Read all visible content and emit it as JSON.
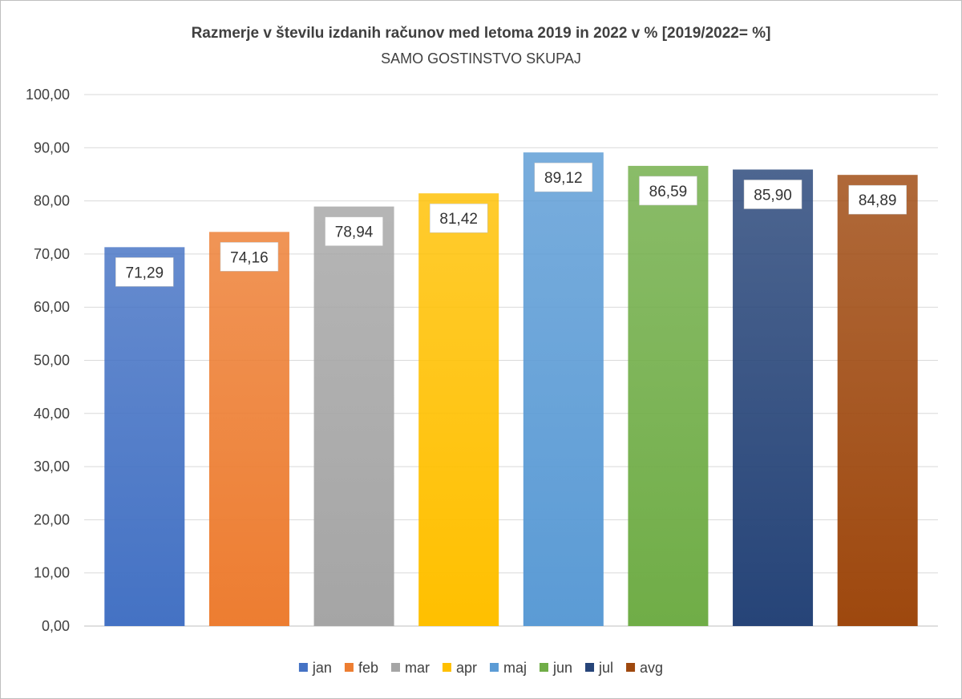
{
  "chart_data": {
    "type": "bar",
    "title": "Razmerje v številu izdanih računov med letoma 2019 in 2022 v % [2019/2022= %]",
    "subtitle": "SAMO GOSTINSTVO SKUPAJ",
    "categories": [
      "jan",
      "feb",
      "mar",
      "apr",
      "maj",
      "jun",
      "jul",
      "avg"
    ],
    "values": [
      71.29,
      74.16,
      78.94,
      81.42,
      89.12,
      86.59,
      85.9,
      84.89
    ],
    "data_labels": [
      "71,29",
      "74,16",
      "78,94",
      "81,42",
      "89,12",
      "86,59",
      "85,90",
      "84,89"
    ],
    "colors": [
      "#4472C4",
      "#ED7D31",
      "#A5A5A5",
      "#FFC000",
      "#5B9BD5",
      "#70AD47",
      "#264478",
      "#9E480E"
    ],
    "ylim": [
      0,
      100
    ],
    "yticks": [
      "0,00",
      "10,00",
      "20,00",
      "30,00",
      "40,00",
      "50,00",
      "60,00",
      "70,00",
      "80,00",
      "90,00",
      "100,00"
    ],
    "xlabel": "",
    "ylabel": "",
    "grid": true,
    "legend_position": "bottom"
  }
}
